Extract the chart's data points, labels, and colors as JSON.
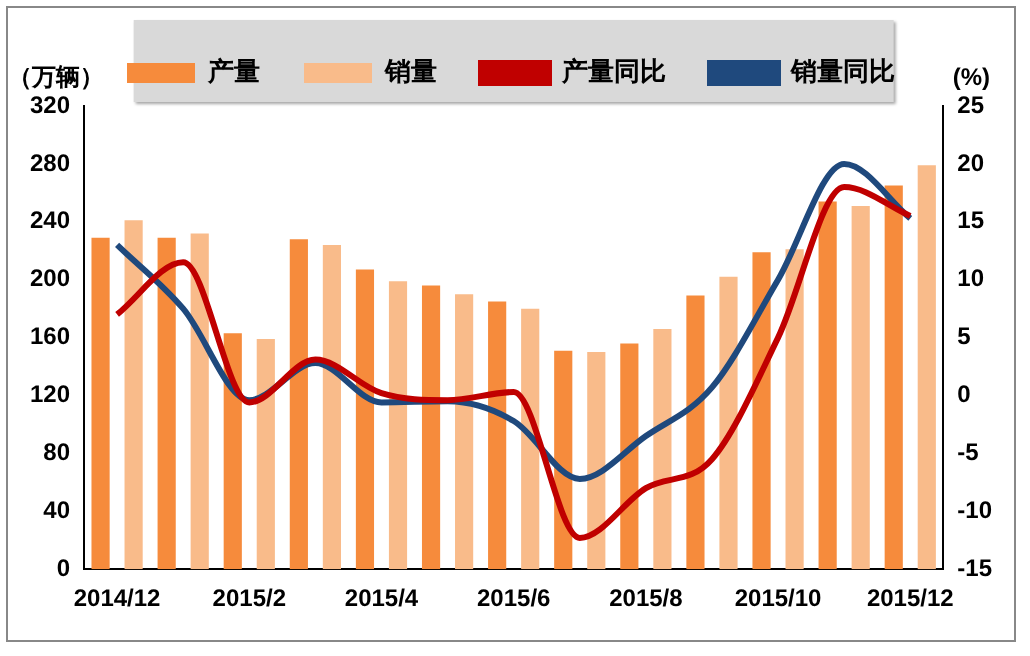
{
  "chart_data": {
    "type": "bar",
    "categories": [
      "2014/12",
      null,
      "2015/2",
      null,
      "2015/4",
      null,
      "2015/6",
      null,
      "2015/8",
      null,
      "2015/10",
      null,
      "2015/12"
    ],
    "series": [
      {
        "name": "产量",
        "color": "#f68b3c",
        "values": [
          229,
          229,
          163,
          228,
          207,
          196,
          185,
          151,
          156,
          189,
          219,
          254,
          265
        ]
      },
      {
        "name": "销量",
        "color": "#f9bb8a",
        "values": [
          241,
          232,
          159,
          224,
          199,
          190,
          180,
          150,
          166,
          202,
          221,
          251,
          279
        ]
      },
      {
        "name": "产量同比",
        "type": "line",
        "axis": "y2",
        "color": "#c00000",
        "values": [
          7.0,
          11.5,
          -0.6,
          3.1,
          0.2,
          -0.4,
          0.3,
          -12.3,
          -8.0,
          -5.5,
          5.0,
          18.0,
          15.5
        ]
      },
      {
        "name": "销量同比",
        "type": "line",
        "axis": "y2",
        "color": "#1f497d",
        "values": [
          13.0,
          7.5,
          -0.4,
          2.8,
          -0.6,
          -0.5,
          -2.2,
          -7.2,
          -3.5,
          0.7,
          10.0,
          20.0,
          15.3
        ]
      }
    ],
    "ylabel": "（万辆）",
    "y2label": "(%)",
    "ylim": [
      0,
      320
    ],
    "yticks": [
      0,
      40,
      80,
      120,
      160,
      200,
      240,
      280,
      320
    ],
    "y2lim": [
      -15,
      25
    ],
    "y2ticks": [
      -15,
      -10,
      -5,
      0,
      5,
      10,
      15,
      20,
      25
    ],
    "legend": "top",
    "grid": false,
    "marker": "none"
  }
}
